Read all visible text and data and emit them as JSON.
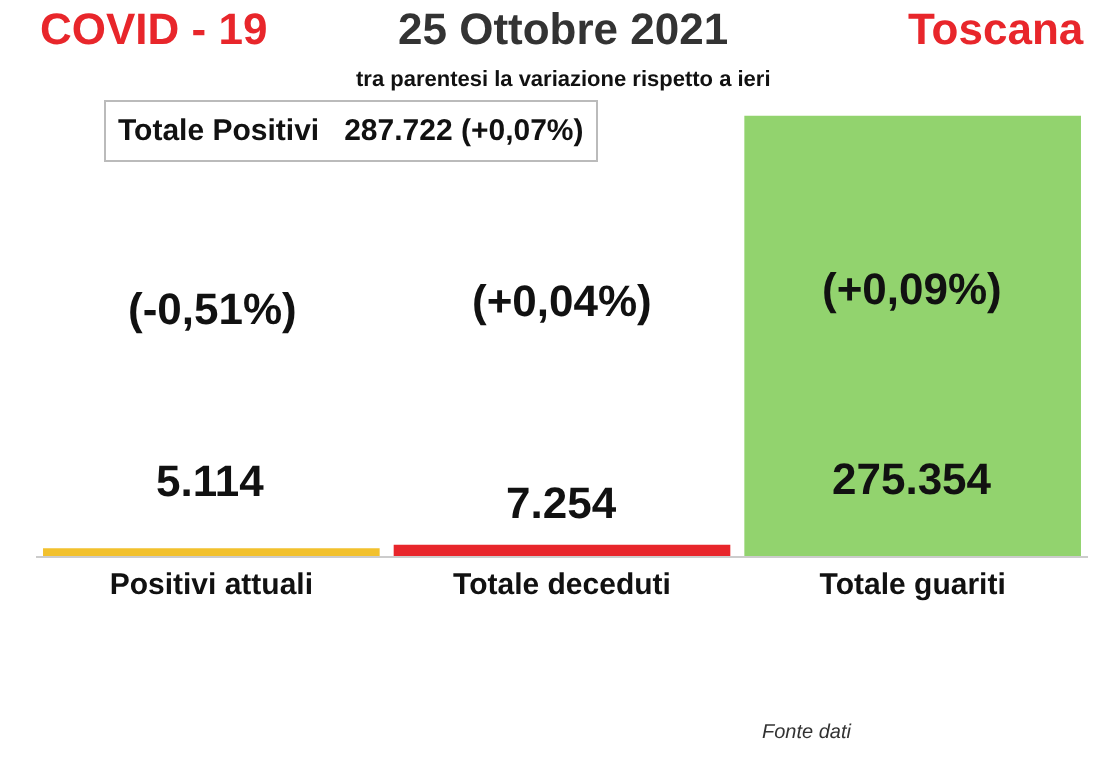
{
  "chart_data": {
    "type": "bar",
    "title": "25 Ottobre 2021",
    "subtitle": "tra parentesi la variazione rispetto a ieri",
    "categories": [
      "Positivi attuali",
      "Totale deceduti",
      "Totale guariti"
    ],
    "values": [
      5114,
      7254,
      275354
    ],
    "colors": [
      "#f2c12e",
      "#e8262b",
      "#92d36e"
    ],
    "value_labels": [
      "5.114",
      "7.254",
      "275.354"
    ],
    "annotations": [
      "COVID - 19",
      "Toscana",
      "Totale Positivi   287.722 (+0,07%)",
      "(-0,51%)",
      "(+0,04%)",
      "(+0,09%)",
      "Fonte dati"
    ]
  }
}
